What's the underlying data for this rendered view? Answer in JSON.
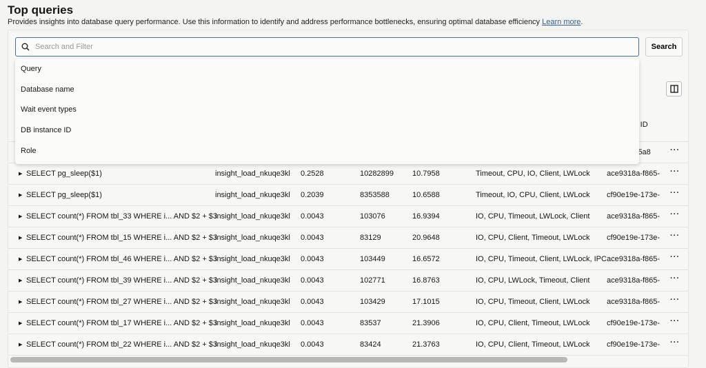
{
  "title": "Top queries",
  "description": "Provides insights into database query performance. Use this information to identify and address performance bottlenecks, ensuring optimal database efficiency",
  "learn_more": "Learn more",
  "search": {
    "placeholder": "Search and Filter",
    "button": "Search"
  },
  "filter_options": [
    "Query",
    "Database name",
    "Wait event types",
    "DB instance ID",
    "Role"
  ],
  "partial_header": "ce ID",
  "partial_row": {
    "instance": ")-d5a8"
  },
  "rows": [
    [
      "SELECT pg_sleep($1)",
      "insight_load_nkuqe3kl",
      "0.2528",
      "10282899",
      "10.7958",
      "Timeout, CPU, IO, Client, LWLock",
      "ace9318a-f865-"
    ],
    [
      "SELECT pg_sleep($1)",
      "insight_load_nkuqe3kl",
      "0.2039",
      "8353588",
      "10.6588",
      "Timeout, IO, CPU, Client, LWLock",
      "cf90e19e-173e-"
    ],
    [
      "SELECT count(*) FROM tbl_33 WHERE i... AND $2 + $3",
      "insight_load_nkuqe3kl",
      "0.0043",
      "103076",
      "16.9394",
      "IO, CPU, Timeout, LWLock, Client",
      "ace9318a-f865-"
    ],
    [
      "SELECT count(*) FROM tbl_15 WHERE i... AND $2 + $3",
      "insight_load_nkuqe3kl",
      "0.0043",
      "83129",
      "20.9648",
      "IO, CPU, Client, Timeout, LWLock",
      "cf90e19e-173e-"
    ],
    [
      "SELECT count(*) FROM tbl_46 WHERE i... AND $2 + $3",
      "insight_load_nkuqe3kl",
      "0.0043",
      "103449",
      "16.6572",
      "IO, CPU, Timeout, Client, LWLock, IPC",
      "ace9318a-f865-"
    ],
    [
      "SELECT count(*) FROM tbl_39 WHERE i... AND $2 + $3",
      "insight_load_nkuqe3kl",
      "0.0043",
      "102771",
      "16.8763",
      "IO, CPU, LWLock, Timeout, Client",
      "ace9318a-f865-"
    ],
    [
      "SELECT count(*) FROM tbl_27 WHERE i... AND $2 + $3",
      "insight_load_nkuqe3kl",
      "0.0043",
      "103429",
      "17.1015",
      "IO, CPU, Timeout, Client, LWLock",
      "ace9318a-f865-"
    ],
    [
      "SELECT count(*) FROM tbl_17 WHERE i... AND $2 + $3",
      "insight_load_nkuqe3kl",
      "0.0043",
      "83537",
      "21.3906",
      "IO, CPU, Client, Timeout, LWLock",
      "cf90e19e-173e-"
    ],
    [
      "SELECT count(*) FROM tbl_22 WHERE i... AND $2 + $3",
      "insight_load_nkuqe3kl",
      "0.0043",
      "83424",
      "21.3763",
      "IO, CPU, Client, Timeout, LWLock",
      "cf90e19e-173e-"
    ]
  ],
  "icons": {
    "search": "search-icon",
    "columns": "columns-icon",
    "expand": "caret-right-icon",
    "more": "more-actions-icon"
  }
}
